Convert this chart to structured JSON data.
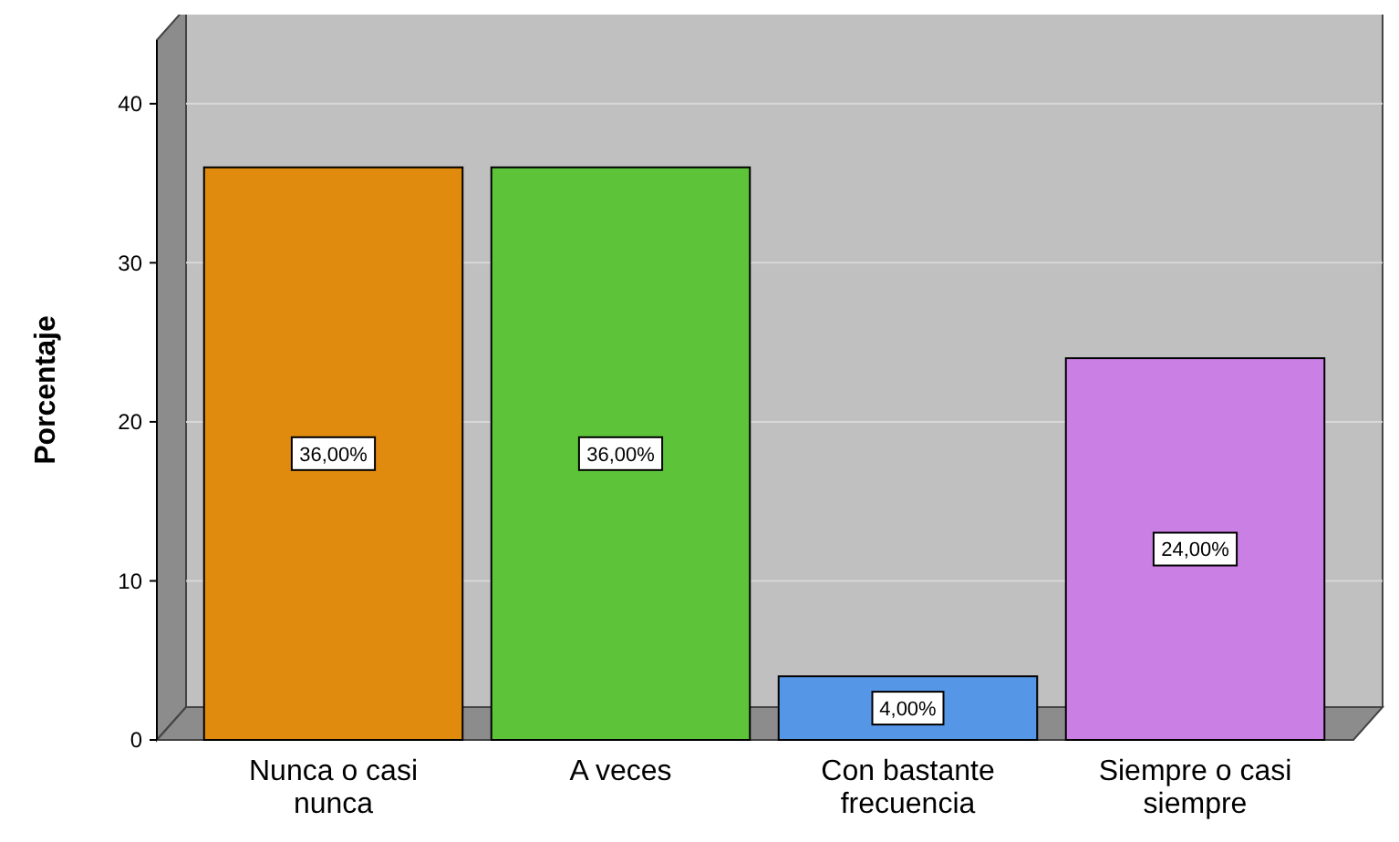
{
  "chart_data": {
    "type": "bar",
    "ylabel": "Porcentaje",
    "categories": [
      "Nunca o casi nunca",
      "A veces",
      "Con bastante frecuencia",
      "Siempre o casi siempre"
    ],
    "values": [
      36,
      36,
      4,
      24
    ],
    "colors": [
      "#e08a0e",
      "#5dc43a",
      "#5596e6",
      "#c97fe3"
    ],
    "value_labels": [
      "36,00%",
      "36,00%",
      "4,00%",
      "24,00%"
    ],
    "ylim": [
      0,
      44
    ],
    "yticks": [
      0,
      10,
      20,
      30,
      40
    ],
    "grid": "y"
  }
}
